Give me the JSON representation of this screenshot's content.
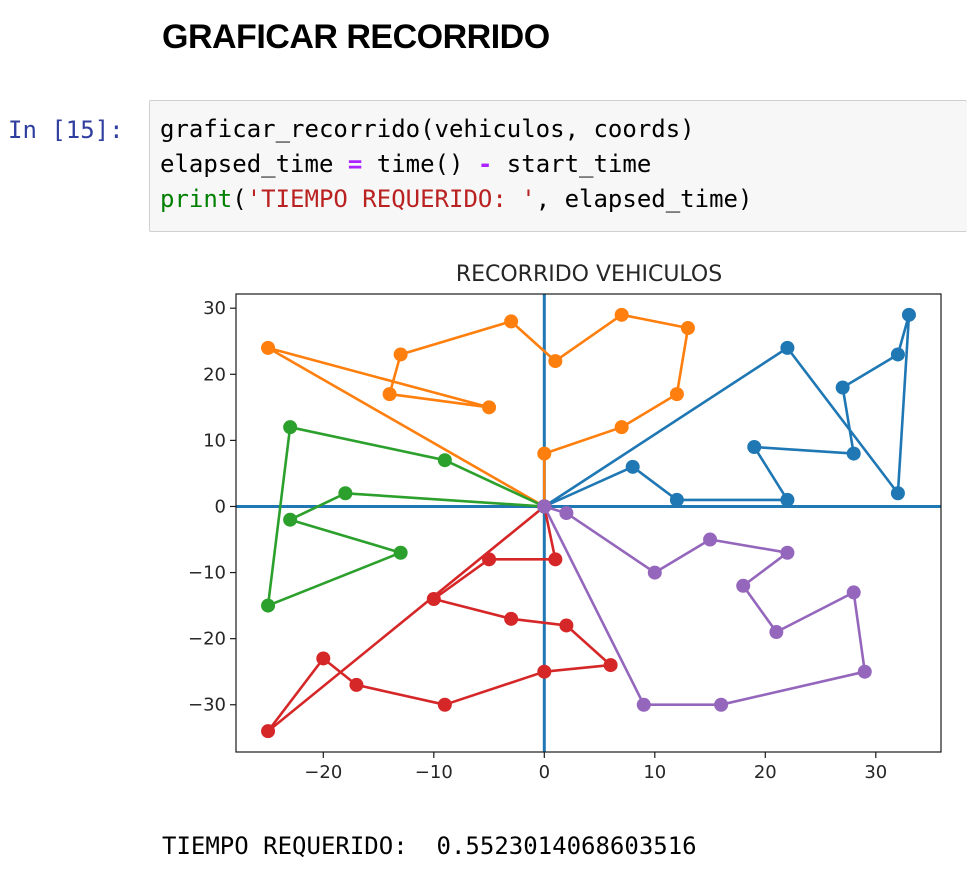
{
  "notebook": {
    "section_heading": "GRAFICAR RECORRIDO",
    "cell": {
      "prompt": "In [15]:",
      "code_lines": [
        [
          {
            "t": "graficar_recorrido(vehiculos, coords)",
            "c": ""
          }
        ],
        [
          {
            "t": "elapsed_time ",
            "c": ""
          },
          {
            "t": "=",
            "c": "op"
          },
          {
            "t": " time() ",
            "c": ""
          },
          {
            "t": "-",
            "c": "op"
          },
          {
            "t": " start_time",
            "c": ""
          }
        ],
        [
          {
            "t": "print",
            "c": "builtin"
          },
          {
            "t": "(",
            "c": ""
          },
          {
            "t": "'TIEMPO REQUERIDO: '",
            "c": "str"
          },
          {
            "t": ", elapsed_time)",
            "c": ""
          }
        ]
      ]
    },
    "output_text": "TIEMPO REQUERIDO:  0.5523014068603516"
  },
  "chart_data": {
    "type": "line",
    "title": "RECORRIDO VEHICULOS",
    "xlabel": "",
    "ylabel": "",
    "xlim": [
      -27.9,
      35.9
    ],
    "ylim": [
      -37.15,
      32.15
    ],
    "x_ticks": [
      -20,
      -10,
      0,
      10,
      20,
      30
    ],
    "x_tick_labels": [
      "−20",
      "−10",
      "0",
      "10",
      "20",
      "30"
    ],
    "y_ticks": [
      30,
      20,
      10,
      0,
      -10,
      -20,
      -30
    ],
    "y_tick_labels": [
      "30",
      "20",
      "10",
      "0",
      "−10",
      "−20",
      "−30"
    ],
    "grid": false,
    "reference_lines": [
      {
        "axis": "x",
        "value": 0,
        "color": "#1f77b4"
      },
      {
        "axis": "y",
        "value": 0,
        "color": "#1f77b4"
      }
    ],
    "series": [
      {
        "color": "#1f77b4",
        "points": [
          [
            0,
            0
          ],
          [
            8,
            6
          ],
          [
            12,
            1
          ],
          [
            22,
            1
          ],
          [
            19,
            9
          ],
          [
            28,
            8
          ],
          [
            27,
            18
          ],
          [
            32,
            23
          ],
          [
            33,
            29
          ],
          [
            32,
            2
          ],
          [
            22,
            24
          ],
          [
            0,
            0
          ]
        ]
      },
      {
        "color": "#ff7f0e",
        "points": [
          [
            0,
            0
          ],
          [
            0,
            8
          ],
          [
            7,
            12
          ],
          [
            12,
            17
          ],
          [
            13,
            27
          ],
          [
            7,
            29
          ],
          [
            1,
            22
          ],
          [
            -3,
            28
          ],
          [
            -13,
            23
          ],
          [
            -14,
            17
          ],
          [
            -5,
            15
          ],
          [
            -25,
            24
          ],
          [
            0,
            0
          ]
        ]
      },
      {
        "color": "#2ca02c",
        "points": [
          [
            0,
            0
          ],
          [
            -9,
            7
          ],
          [
            -23,
            12
          ],
          [
            -25,
            -15
          ],
          [
            -13,
            -7
          ],
          [
            -23,
            -2
          ],
          [
            -18,
            2
          ],
          [
            0,
            0
          ]
        ]
      },
      {
        "color": "#d62728",
        "points": [
          [
            0,
            0
          ],
          [
            1,
            -8
          ],
          [
            -5,
            -8
          ],
          [
            -10,
            -14
          ],
          [
            -3,
            -17
          ],
          [
            2,
            -18
          ],
          [
            6,
            -24
          ],
          [
            0,
            -25
          ],
          [
            -9,
            -30
          ],
          [
            -17,
            -27
          ],
          [
            -20,
            -23
          ],
          [
            -25,
            -34
          ],
          [
            0,
            0
          ]
        ]
      },
      {
        "color": "#9467bd",
        "points": [
          [
            0,
            0
          ],
          [
            2,
            -1
          ],
          [
            10,
            -10
          ],
          [
            15,
            -5
          ],
          [
            22,
            -7
          ],
          [
            18,
            -12
          ],
          [
            21,
            -19
          ],
          [
            28,
            -13
          ],
          [
            29,
            -25
          ],
          [
            16,
            -30
          ],
          [
            9,
            -30
          ],
          [
            0,
            0
          ]
        ]
      }
    ]
  }
}
